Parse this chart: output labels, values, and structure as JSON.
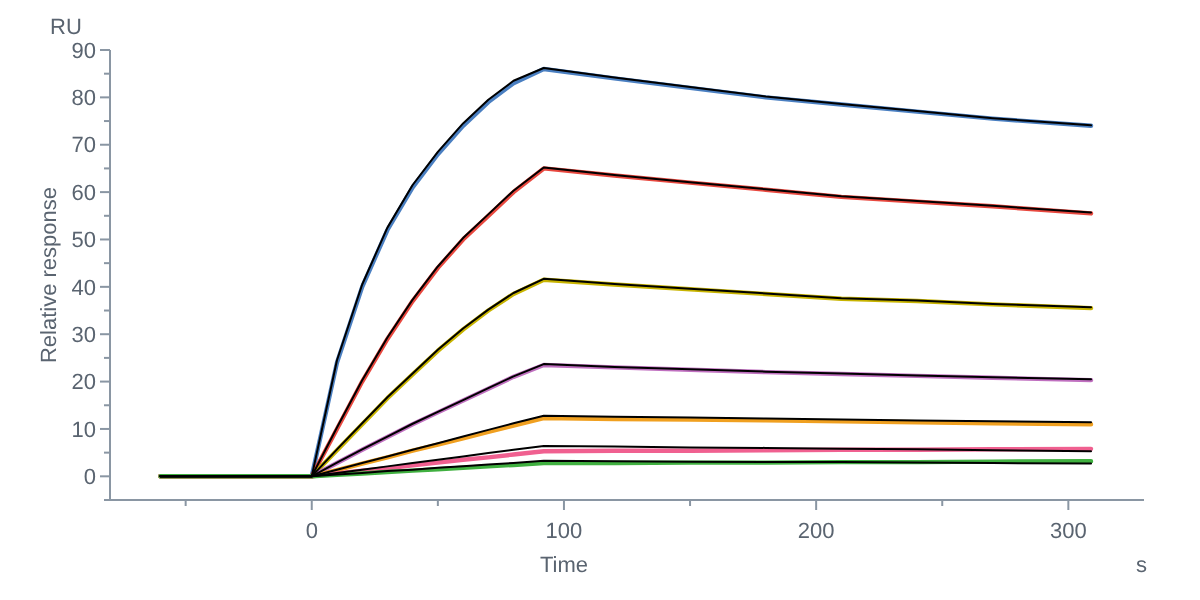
{
  "chart_data": {
    "type": "line",
    "xlabel": "Time",
    "ylabel": "Relative response",
    "annotations": [
      "RU",
      "s"
    ],
    "x": [
      -60,
      0,
      10,
      20,
      30,
      40,
      50,
      60,
      70,
      80,
      92,
      120,
      150,
      180,
      210,
      240,
      270,
      309
    ],
    "xlim": [
      -80,
      330
    ],
    "xticks": [
      {
        "value": -50,
        "label": null
      },
      0,
      {
        "value": 50,
        "label": null
      },
      100,
      {
        "value": 150,
        "label": null
      },
      200,
      {
        "value": 250,
        "label": null
      },
      300
    ],
    "ylim": [
      -5,
      90
    ],
    "yticks": [
      {
        "value": -5,
        "label": null
      },
      0,
      {
        "value": 5,
        "label": null
      },
      10,
      {
        "value": 15,
        "label": null
      },
      20,
      {
        "value": 25,
        "label": null
      },
      30,
      {
        "value": 35,
        "label": null
      },
      40,
      {
        "value": 45,
        "label": null
      },
      50,
      {
        "value": 55,
        "label": null
      },
      60,
      {
        "value": 65,
        "label": null
      },
      70,
      {
        "value": 75,
        "label": null
      },
      80,
      {
        "value": 85,
        "label": null
      },
      90
    ],
    "grid": false,
    "marker": "none",
    "line_style": "solid",
    "series": [
      {
        "color": "#4a7fc1",
        "values": [
          0,
          0,
          24,
          40,
          52,
          61,
          68,
          74,
          79,
          83,
          86,
          84,
          82,
          80,
          78.5,
          77,
          75.5,
          74
        ]
      },
      {
        "color": "#e8483f",
        "values": [
          0,
          0,
          10,
          20,
          29,
          37,
          44,
          50,
          55,
          60,
          65,
          63.5,
          62,
          60.5,
          59,
          58,
          57,
          55.5
        ]
      },
      {
        "color": "#c8b400",
        "values": [
          0,
          0,
          5.5,
          11,
          16.5,
          21.5,
          26.5,
          31,
          35,
          38.5,
          41.5,
          40.5,
          39.5,
          38.5,
          37.5,
          37,
          36.3,
          35.5
        ]
      },
      {
        "color": "#c070c0",
        "values": [
          0,
          0,
          2.8,
          5.6,
          8.3,
          11,
          13.5,
          16,
          18.5,
          21,
          23.5,
          23,
          22.5,
          22,
          21.6,
          21.2,
          20.8,
          20.3
        ]
      },
      {
        "color": "#f0a020",
        "values": [
          0,
          0,
          1.3,
          2.7,
          4,
          5.4,
          6.7,
          8,
          9.4,
          10.7,
          12.3,
          12.1,
          12,
          11.8,
          11.6,
          11.4,
          11.2,
          11
        ]
      },
      {
        "color": "#f06090",
        "values": [
          0,
          0,
          0.6,
          1.2,
          1.7,
          2.3,
          2.9,
          3.5,
          4,
          4.6,
          5.3,
          5.4,
          5.4,
          5.5,
          5.6,
          5.6,
          5.7,
          5.8
        ]
      },
      {
        "color": "#40b040",
        "values": [
          0,
          0,
          0.3,
          0.6,
          0.9,
          1.2,
          1.5,
          1.8,
          2.1,
          2.4,
          2.8,
          2.8,
          2.9,
          2.9,
          3,
          3,
          3.1,
          3.2
        ]
      },
      {
        "color": "#000000",
        "values": [
          0,
          0,
          24.5,
          40.5,
          52.5,
          61.5,
          68.5,
          74.5,
          79.5,
          83.5,
          86.2,
          84.2,
          82.2,
          80.2,
          78.6,
          77.1,
          75.6,
          74.1
        ]
      },
      {
        "color": "#000000",
        "values": [
          0,
          0,
          10.3,
          20.3,
          29.3,
          37.3,
          44.3,
          50.3,
          55.3,
          60.3,
          65.2,
          63.6,
          62.1,
          60.6,
          59.1,
          58.1,
          57.1,
          55.7
        ]
      },
      {
        "color": "#000000",
        "values": [
          0,
          0,
          5.7,
          11.2,
          16.7,
          21.7,
          26.7,
          31.2,
          35.2,
          38.7,
          41.7,
          40.6,
          39.6,
          38.6,
          37.6,
          37.1,
          36.4,
          35.7
        ]
      },
      {
        "color": "#000000",
        "values": [
          0,
          0,
          2.9,
          5.7,
          8.4,
          11.1,
          13.6,
          16.1,
          18.6,
          21.1,
          23.7,
          23.1,
          22.6,
          22.1,
          21.7,
          21.3,
          20.9,
          20.5
        ]
      },
      {
        "color": "#000000",
        "values": [
          0,
          0,
          1.4,
          2.8,
          4.2,
          5.6,
          7,
          8.4,
          9.8,
          11.2,
          12.8,
          12.6,
          12.4,
          12.2,
          12,
          11.8,
          11.6,
          11.4
        ]
      },
      {
        "color": "#000000",
        "values": [
          0,
          0,
          0.7,
          1.4,
          2.1,
          2.8,
          3.5,
          4.2,
          4.9,
          5.6,
          6.4,
          6.3,
          6.1,
          6,
          5.8,
          5.7,
          5.5,
          5.3
        ]
      },
      {
        "color": "#000000",
        "values": [
          0,
          0,
          0.4,
          0.7,
          1.1,
          1.4,
          1.8,
          2.1,
          2.5,
          2.8,
          3.3,
          3.2,
          3.1,
          3,
          3,
          2.9,
          2.8,
          2.7
        ]
      }
    ]
  }
}
